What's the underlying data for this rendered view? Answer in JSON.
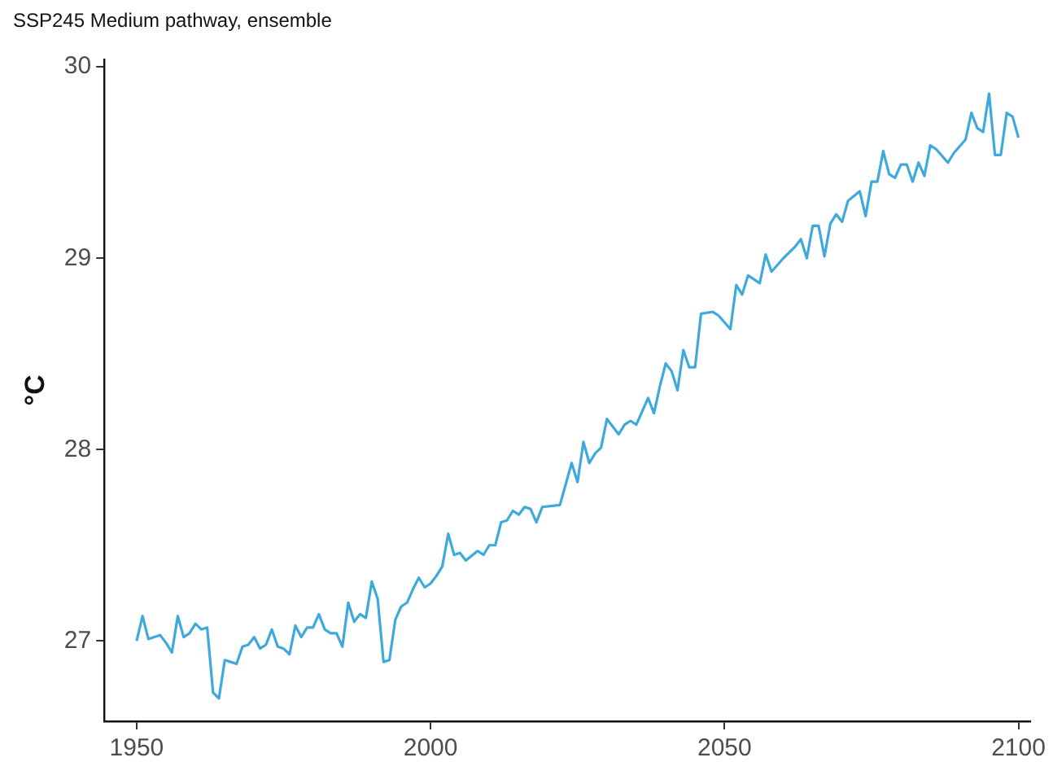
{
  "chart_data": {
    "type": "line",
    "title": "SSP245 Medium pathway, ensemble",
    "ylabel": "°C",
    "x": [
      1950,
      1951,
      1952,
      1953,
      1954,
      1955,
      1956,
      1957,
      1958,
      1959,
      1960,
      1961,
      1962,
      1963,
      1964,
      1965,
      1966,
      1967,
      1968,
      1969,
      1970,
      1971,
      1972,
      1973,
      1974,
      1975,
      1976,
      1977,
      1978,
      1979,
      1980,
      1981,
      1982,
      1983,
      1984,
      1985,
      1986,
      1987,
      1988,
      1989,
      1990,
      1991,
      1992,
      1993,
      1994,
      1995,
      1996,
      1997,
      1998,
      1999,
      2000,
      2001,
      2002,
      2003,
      2004,
      2005,
      2006,
      2008,
      2009,
      2010,
      2011,
      2012,
      2013,
      2014,
      2015,
      2016,
      2017,
      2018,
      2019,
      2022,
      2024,
      2025,
      2026,
      2027,
      2028,
      2029,
      2030,
      2032,
      2033,
      2034,
      2035,
      2037,
      2038,
      2039,
      2040,
      2041,
      2042,
      2043,
      2044,
      2045,
      2046,
      2048,
      2049,
      2051,
      2052,
      2053,
      2054,
      2056,
      2057,
      2058,
      2060,
      2062,
      2063,
      2064,
      2065,
      2066,
      2067,
      2068,
      2069,
      2070,
      2071,
      2073,
      2074,
      2075,
      2076,
      2077,
      2078,
      2079,
      2080,
      2081,
      2082,
      2083,
      2084,
      2085,
      2086,
      2088,
      2089,
      2091,
      2092,
      2093,
      2094,
      2095,
      2096,
      2097,
      2098,
      2099,
      2100
    ],
    "series": [
      {
        "color": "#3fa9dc",
        "values": [
          27.0,
          27.13,
          27.01,
          27.02,
          27.03,
          26.99,
          26.94,
          27.13,
          27.02,
          27.04,
          27.09,
          27.06,
          27.07,
          26.73,
          26.7,
          26.9,
          26.89,
          26.88,
          26.97,
          26.98,
          27.02,
          26.96,
          26.98,
          27.06,
          26.97,
          26.96,
          26.93,
          27.08,
          27.02,
          27.07,
          27.07,
          27.14,
          27.06,
          27.04,
          27.04,
          26.97,
          27.2,
          27.1,
          27.14,
          27.12,
          27.31,
          27.22,
          26.89,
          26.9,
          27.11,
          27.18,
          27.2,
          27.27,
          27.33,
          27.28,
          27.3,
          27.34,
          27.39,
          27.56,
          27.45,
          27.46,
          27.42,
          27.47,
          27.45,
          27.5,
          27.5,
          27.62,
          27.63,
          27.68,
          27.66,
          27.7,
          27.69,
          27.62,
          27.7,
          27.71,
          27.93,
          27.83,
          28.04,
          27.93,
          27.98,
          28.01,
          28.16,
          28.08,
          28.13,
          28.15,
          28.13,
          28.27,
          28.19,
          28.33,
          28.45,
          28.41,
          28.31,
          28.52,
          28.43,
          28.43,
          28.71,
          28.72,
          28.7,
          28.63,
          28.86,
          28.81,
          28.91,
          28.87,
          29.02,
          28.93,
          29.0,
          29.06,
          29.1,
          29.0,
          29.17,
          29.17,
          29.01,
          29.18,
          29.23,
          29.19,
          29.3,
          29.35,
          29.22,
          29.4,
          29.4,
          29.56,
          29.44,
          29.42,
          29.49,
          29.49,
          29.4,
          29.5,
          29.43,
          29.59,
          29.57,
          29.5,
          29.55,
          29.62,
          29.76,
          29.68,
          29.66,
          29.86,
          29.54,
          29.54,
          29.76,
          29.74,
          29.63
        ]
      }
    ],
    "xlim": [
      1944.5,
      2102
    ],
    "xticks": [
      1950,
      2000,
      2050,
      2100
    ],
    "ylim": [
      26.58,
      30.04
    ],
    "yticks": [
      27,
      28,
      29,
      30
    ],
    "grid": false,
    "legend": false,
    "marker": "none",
    "line_style": "solid"
  }
}
